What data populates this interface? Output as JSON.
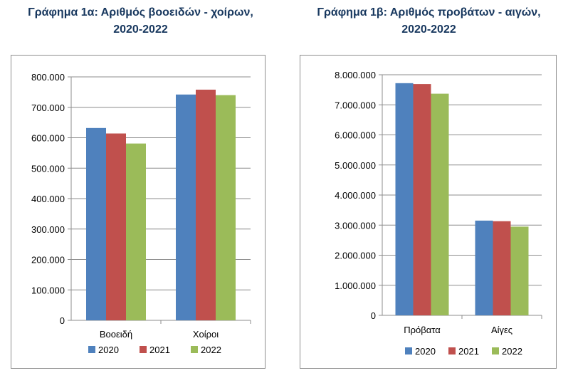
{
  "colors": {
    "2020": "#4f81bd",
    "2021": "#c0504d",
    "2022": "#9bbb59"
  },
  "chart_data": [
    {
      "type": "bar",
      "title_lines": [
        "Γράφημα 1α: Αριθμός βοοειδών - χοίρων,",
        "2020-2022"
      ],
      "categories": [
        "Βοοειδή",
        "Χοίροι"
      ],
      "series": [
        {
          "name": "2020",
          "values": [
            632000,
            742000
          ]
        },
        {
          "name": "2021",
          "values": [
            614000,
            758000
          ]
        },
        {
          "name": "2022",
          "values": [
            581000,
            740000
          ]
        }
      ],
      "ylim": [
        0,
        800000
      ],
      "yticks": [
        0,
        100000,
        200000,
        300000,
        400000,
        500000,
        600000,
        700000,
        800000
      ],
      "ytick_labels": [
        "0",
        "100.000",
        "200.000",
        "300.000",
        "400.000",
        "500.000",
        "600.000",
        "700.000",
        "800.000"
      ],
      "grid": true,
      "legend": "bottom"
    },
    {
      "type": "bar",
      "title_lines": [
        "Γράφημα 1β: Αριθμός προβάτων - αιγών,",
        "2020-2022"
      ],
      "categories": [
        "Πρόβατα",
        "Αίγες"
      ],
      "series": [
        {
          "name": "2020",
          "values": [
            7720000,
            3150000
          ]
        },
        {
          "name": "2021",
          "values": [
            7690000,
            3130000
          ]
        },
        {
          "name": "2022",
          "values": [
            7370000,
            2950000
          ]
        }
      ],
      "ylim": [
        0,
        8000000
      ],
      "yticks": [
        0,
        1000000,
        2000000,
        3000000,
        4000000,
        5000000,
        6000000,
        7000000,
        8000000
      ],
      "ytick_labels": [
        "0",
        "1.000.000",
        "2.000.000",
        "3.000.000",
        "4.000.000",
        "5.000.000",
        "6.000.000",
        "7.000.000",
        "8.000.000"
      ],
      "grid": true,
      "legend": "bottom"
    }
  ]
}
